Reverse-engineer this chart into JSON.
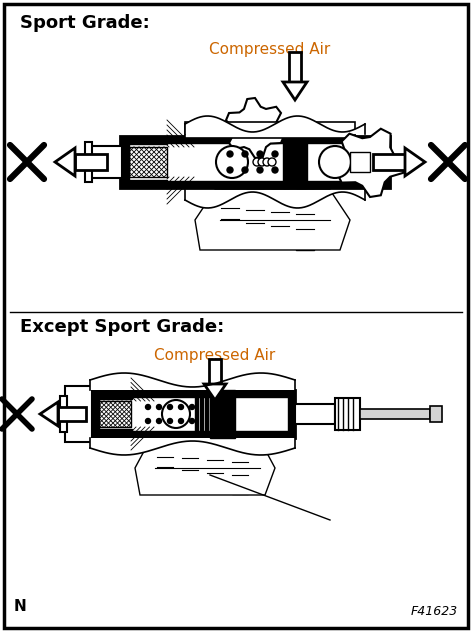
{
  "label_sport": "Sport Grade:",
  "label_except": "Except Sport Grade:",
  "label_compressed_air": "Compressed Air",
  "label_n": "N",
  "label_code": "F41623",
  "bg_color": "#ffffff",
  "border_color": "#000000",
  "text_color_heading": "#000000",
  "text_color_air": "#cc6600",
  "figsize": [
    4.72,
    6.32
  ],
  "dpi": 100
}
